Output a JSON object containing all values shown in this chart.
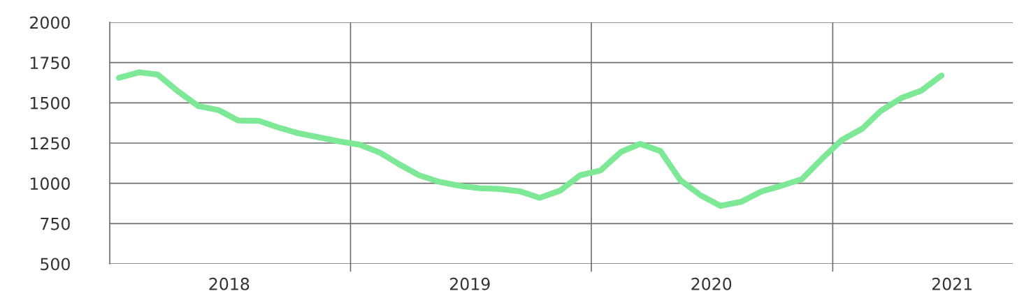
{
  "chart_data": {
    "type": "line",
    "x": [
      "2018-01-15",
      "2018-02-15",
      "2018-03-15",
      "2018-04-15",
      "2018-05-15",
      "2018-06-15",
      "2018-07-15",
      "2018-08-15",
      "2018-09-15",
      "2018-10-15",
      "2018-11-15",
      "2018-12-15",
      "2019-01-15",
      "2019-02-15",
      "2019-03-15",
      "2019-04-15",
      "2019-05-15",
      "2019-06-15",
      "2019-07-15",
      "2019-08-15",
      "2019-09-15",
      "2019-10-15",
      "2019-11-15",
      "2019-12-15",
      "2020-01-15",
      "2020-02-15",
      "2020-03-15",
      "2020-04-15",
      "2020-05-15",
      "2020-06-15",
      "2020-07-15",
      "2020-08-15",
      "2020-09-15",
      "2020-10-15",
      "2020-11-15",
      "2020-12-15",
      "2021-01-15",
      "2021-02-15",
      "2021-03-15",
      "2021-04-15",
      "2021-05-15",
      "2021-06-15"
    ],
    "series": [
      {
        "color": "#7de896",
        "values": [
          1655,
          1690,
          1675,
          1570,
          1480,
          1455,
          1390,
          1388,
          1345,
          1310,
          1285,
          1260,
          1240,
          1190,
          1120,
          1050,
          1010,
          985,
          970,
          965,
          950,
          910,
          955,
          1050,
          1080,
          1195,
          1245,
          1200,
          1020,
          925,
          860,
          885,
          950,
          985,
          1025,
          1150,
          1270,
          1340,
          1450,
          1530,
          1575,
          1670
        ]
      }
    ],
    "xlim": [
      "2018-01-01",
      "2021-10-01"
    ],
    "xticks": [
      {
        "value": "2018-07-01",
        "label": "2018"
      },
      {
        "value": "2019-07-01",
        "label": "2019"
      },
      {
        "value": "2020-07-01",
        "label": "2020"
      },
      {
        "value": "2021-07-01",
        "label": "2021"
      }
    ],
    "ylim": [
      500,
      2000
    ],
    "yticks": [
      500,
      750,
      1000,
      1250,
      1500,
      1750,
      2000
    ],
    "grid": "y",
    "ref_lines": [
      {
        "axis": "x",
        "value": "2019-01-01",
        "color": "#6e6e6e"
      },
      {
        "axis": "x",
        "value": "2020-01-01",
        "color": "#6e6e6e"
      },
      {
        "axis": "x",
        "value": "2021-01-01",
        "color": "#6e6e6e"
      }
    ],
    "line_style": "solid",
    "marker": "none"
  }
}
